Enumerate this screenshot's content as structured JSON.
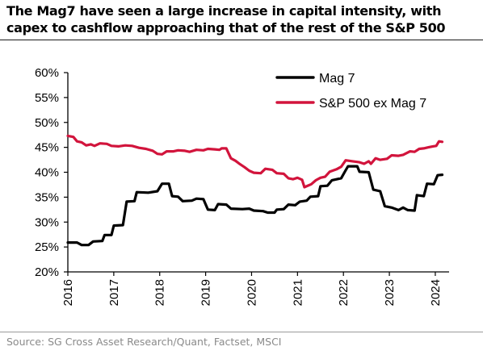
{
  "title": "The Mag7 have seen a large increase in capital intensity, with capex to cashflow approaching that of the rest of the S&P 500",
  "source": "Source: SG Cross Asset Research/Quant, Factset, MSCI",
  "chart_data": {
    "type": "line",
    "title": "The Mag7 have seen a large increase in capital intensity, with capex to cashflow approaching that of the rest of the S&P 500",
    "xlabel": "",
    "ylabel": "",
    "xlim": [
      2016,
      2024.3
    ],
    "ylim": [
      20,
      60
    ],
    "yticks": [
      20,
      25,
      30,
      35,
      40,
      45,
      50,
      55,
      60
    ],
    "ytick_labels": [
      "20%",
      "25%",
      "30%",
      "35%",
      "40%",
      "45%",
      "50%",
      "55%",
      "60%"
    ],
    "xticks": [
      2016,
      2017,
      2018,
      2019,
      2020,
      2021,
      2022,
      2023,
      2024
    ],
    "xtick_labels": [
      "2016",
      "2017",
      "2018",
      "2019",
      "2020",
      "2021",
      "2022",
      "2023",
      "2024"
    ],
    "grid": false,
    "legend_position": "top-right",
    "series": [
      {
        "name": "Mag 7",
        "color": "#000000",
        "points": [
          [
            2016.0,
            25.9
          ],
          [
            2016.2,
            25.9
          ],
          [
            2016.3,
            25.4
          ],
          [
            2016.45,
            25.4
          ],
          [
            2016.55,
            26.1
          ],
          [
            2016.75,
            26.2
          ],
          [
            2016.8,
            27.4
          ],
          [
            2016.95,
            27.4
          ],
          [
            2017.0,
            29.3
          ],
          [
            2017.2,
            29.4
          ],
          [
            2017.28,
            34.1
          ],
          [
            2017.45,
            34.2
          ],
          [
            2017.5,
            36.0
          ],
          [
            2017.75,
            35.9
          ],
          [
            2017.95,
            36.2
          ],
          [
            2018.05,
            37.7
          ],
          [
            2018.2,
            37.7
          ],
          [
            2018.27,
            35.2
          ],
          [
            2018.4,
            35.1
          ],
          [
            2018.5,
            34.2
          ],
          [
            2018.7,
            34.3
          ],
          [
            2018.8,
            34.7
          ],
          [
            2018.95,
            34.6
          ],
          [
            2019.05,
            32.5
          ],
          [
            2019.2,
            32.4
          ],
          [
            2019.27,
            33.6
          ],
          [
            2019.45,
            33.5
          ],
          [
            2019.55,
            32.7
          ],
          [
            2019.8,
            32.6
          ],
          [
            2019.95,
            32.7
          ],
          [
            2020.05,
            32.3
          ],
          [
            2020.25,
            32.2
          ],
          [
            2020.35,
            31.9
          ],
          [
            2020.5,
            31.9
          ],
          [
            2020.55,
            32.5
          ],
          [
            2020.7,
            32.6
          ],
          [
            2020.8,
            33.5
          ],
          [
            2020.95,
            33.4
          ],
          [
            2021.05,
            34.1
          ],
          [
            2021.2,
            34.3
          ],
          [
            2021.28,
            35.1
          ],
          [
            2021.45,
            35.2
          ],
          [
            2021.5,
            37.2
          ],
          [
            2021.65,
            37.3
          ],
          [
            2021.75,
            38.4
          ],
          [
            2021.95,
            38.8
          ],
          [
            2022.05,
            40.4
          ],
          [
            2022.1,
            41.2
          ],
          [
            2022.3,
            41.2
          ],
          [
            2022.35,
            40.1
          ],
          [
            2022.55,
            40.0
          ],
          [
            2022.65,
            36.5
          ],
          [
            2022.8,
            36.2
          ],
          [
            2022.9,
            33.2
          ],
          [
            2023.05,
            32.9
          ],
          [
            2023.2,
            32.4
          ],
          [
            2023.3,
            32.9
          ],
          [
            2023.4,
            32.4
          ],
          [
            2023.55,
            32.3
          ],
          [
            2023.6,
            35.4
          ],
          [
            2023.75,
            35.2
          ],
          [
            2023.82,
            37.7
          ],
          [
            2023.97,
            37.6
          ],
          [
            2024.05,
            39.4
          ],
          [
            2024.15,
            39.5
          ]
        ]
      },
      {
        "name": "S&P 500 ex Mag 7",
        "color": "#d2143c",
        "points": [
          [
            2016.0,
            47.3
          ],
          [
            2016.12,
            47.1
          ],
          [
            2016.2,
            46.2
          ],
          [
            2016.3,
            46.0
          ],
          [
            2016.4,
            45.4
          ],
          [
            2016.5,
            45.6
          ],
          [
            2016.58,
            45.3
          ],
          [
            2016.7,
            45.8
          ],
          [
            2016.85,
            45.7
          ],
          [
            2016.95,
            45.3
          ],
          [
            2017.1,
            45.2
          ],
          [
            2017.25,
            45.4
          ],
          [
            2017.4,
            45.3
          ],
          [
            2017.55,
            44.9
          ],
          [
            2017.7,
            44.7
          ],
          [
            2017.85,
            44.3
          ],
          [
            2017.95,
            43.7
          ],
          [
            2018.05,
            43.6
          ],
          [
            2018.15,
            44.2
          ],
          [
            2018.3,
            44.2
          ],
          [
            2018.4,
            44.4
          ],
          [
            2018.55,
            44.3
          ],
          [
            2018.65,
            44.1
          ],
          [
            2018.8,
            44.5
          ],
          [
            2018.95,
            44.4
          ],
          [
            2019.05,
            44.7
          ],
          [
            2019.2,
            44.6
          ],
          [
            2019.3,
            44.5
          ],
          [
            2019.35,
            44.8
          ],
          [
            2019.45,
            44.8
          ],
          [
            2019.55,
            42.8
          ],
          [
            2019.65,
            42.3
          ],
          [
            2019.75,
            41.6
          ],
          [
            2019.85,
            41.0
          ],
          [
            2019.95,
            40.3
          ],
          [
            2020.05,
            39.9
          ],
          [
            2020.2,
            39.8
          ],
          [
            2020.3,
            40.7
          ],
          [
            2020.45,
            40.5
          ],
          [
            2020.55,
            39.8
          ],
          [
            2020.7,
            39.7
          ],
          [
            2020.8,
            38.8
          ],
          [
            2020.9,
            38.6
          ],
          [
            2021.0,
            38.9
          ],
          [
            2021.1,
            38.5
          ],
          [
            2021.15,
            37.0
          ],
          [
            2021.3,
            37.6
          ],
          [
            2021.4,
            38.4
          ],
          [
            2021.5,
            38.9
          ],
          [
            2021.6,
            39.1
          ],
          [
            2021.7,
            40.1
          ],
          [
            2021.85,
            40.6
          ],
          [
            2021.95,
            41.1
          ],
          [
            2022.05,
            42.4
          ],
          [
            2022.2,
            42.2
          ],
          [
            2022.35,
            42.0
          ],
          [
            2022.45,
            41.7
          ],
          [
            2022.55,
            42.2
          ],
          [
            2022.6,
            41.7
          ],
          [
            2022.7,
            42.8
          ],
          [
            2022.8,
            42.5
          ],
          [
            2022.95,
            42.7
          ],
          [
            2023.05,
            43.4
          ],
          [
            2023.2,
            43.3
          ],
          [
            2023.3,
            43.5
          ],
          [
            2023.45,
            44.2
          ],
          [
            2023.55,
            44.1
          ],
          [
            2023.65,
            44.7
          ],
          [
            2023.75,
            44.8
          ],
          [
            2023.85,
            45.0
          ],
          [
            2023.95,
            45.2
          ],
          [
            2024.02,
            45.3
          ],
          [
            2024.08,
            46.2
          ],
          [
            2024.15,
            46.1
          ]
        ]
      }
    ]
  }
}
